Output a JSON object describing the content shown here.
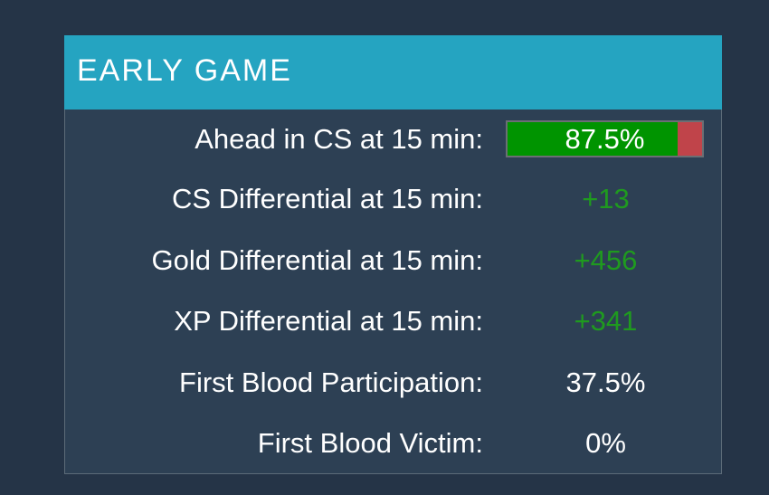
{
  "panel": {
    "title": "EARLY GAME"
  },
  "rows": [
    {
      "label": "Ahead in CS at 15 min:",
      "value": "87.5%",
      "bar_fraction": 0.875,
      "type": "bar"
    },
    {
      "label": "CS Differential at 15 min:",
      "value": "+13",
      "type": "positive"
    },
    {
      "label": "Gold Differential at 15 min:",
      "value": "+456",
      "type": "positive"
    },
    {
      "label": "XP Differential at 15 min:",
      "value": "+341",
      "type": "positive"
    },
    {
      "label": "First Blood Participation:",
      "value": "37.5%",
      "type": "plain"
    },
    {
      "label": "First Blood Victim:",
      "value": "0%",
      "type": "plain"
    }
  ],
  "colors": {
    "header": "#25a4c1",
    "positive": "#1f9a1f",
    "bar_win": "#009400",
    "bar_loss": "#c0444a"
  }
}
